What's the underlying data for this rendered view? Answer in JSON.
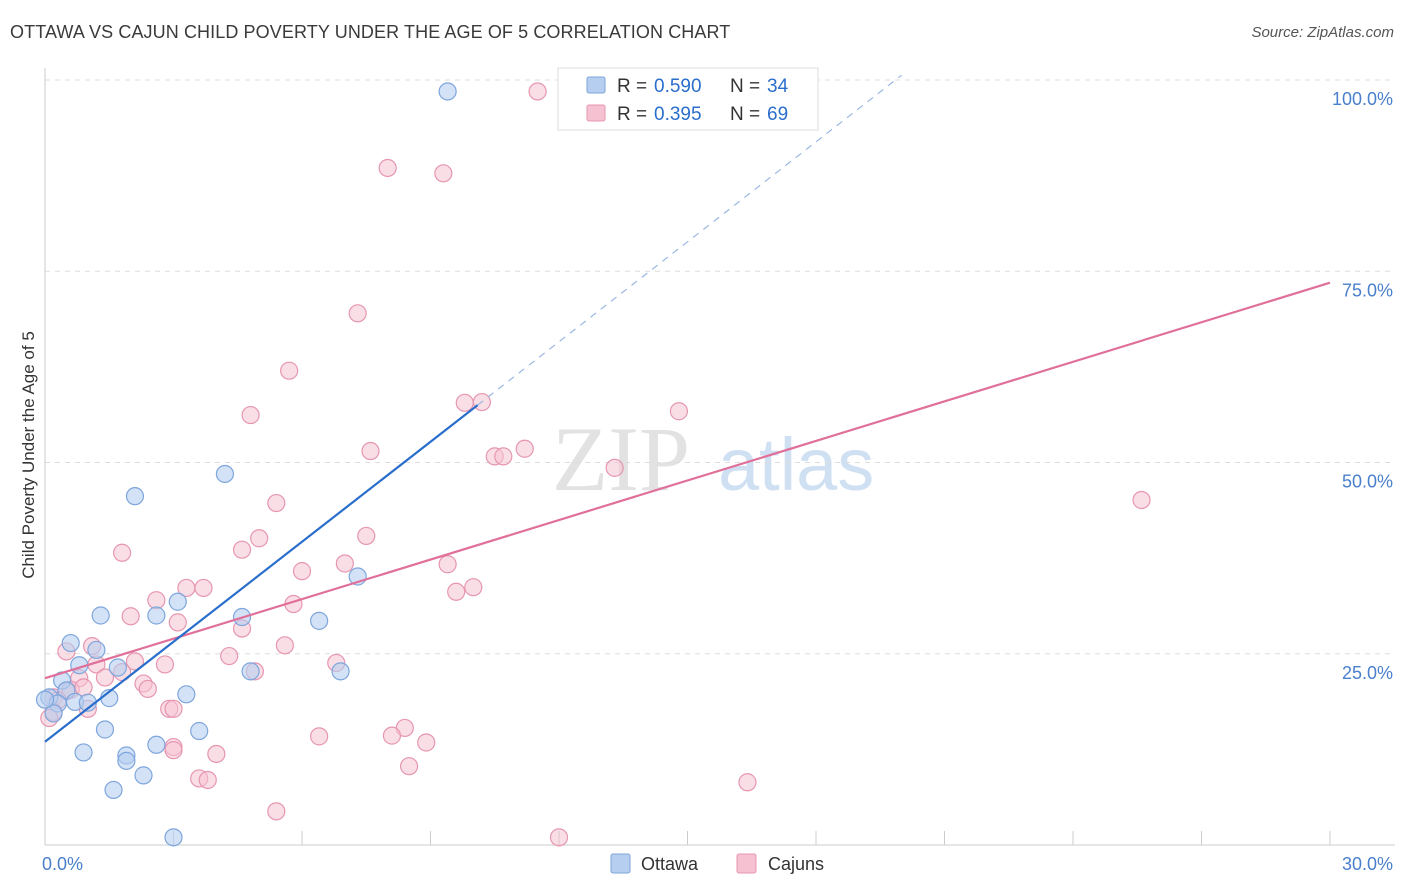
{
  "title": "OTTAWA VS CAJUN CHILD POVERTY UNDER THE AGE OF 5 CORRELATION CHART",
  "source": "Source: ZipAtlas.com",
  "watermark": {
    "zip": "ZIP",
    "atlas": "atlas"
  },
  "colors": {
    "ottawa_fill": "#b6cff0",
    "ottawa_stroke": "#7ea6dc",
    "ottawa_line": "#2a6ecb",
    "cajun_fill": "#f6c2d2",
    "cajun_stroke": "#e696b1",
    "cajun_line": "#e0709a",
    "tick_label": "#4a7fcc",
    "grid": "#dddddd"
  },
  "legend": {
    "rows": [
      {
        "r_label": "R =",
        "r_value": "0.590",
        "n_label": "N =",
        "n_value": "34"
      },
      {
        "r_label": "R =",
        "r_value": "0.395",
        "n_label": "N =",
        "n_value": "69"
      }
    ]
  },
  "bottom_legend": [
    "Ottawa",
    "Cajuns"
  ],
  "chart_data": {
    "type": "scatter",
    "title": "OTTAWA VS CAJUN CHILD POVERTY UNDER THE AGE OF 5 CORRELATION CHART",
    "xlabel": "",
    "ylabel": "Child Poverty Under the Age of 5",
    "xlim": [
      0,
      30
    ],
    "ylim": [
      0,
      100
    ],
    "x_tick_labels": [
      {
        "value": 0,
        "label": "0.0%"
      },
      {
        "value": 30,
        "label": "30.0%"
      }
    ],
    "y_tick_labels": [
      {
        "value": 25,
        "label": "25.0%"
      },
      {
        "value": 50,
        "label": "50.0%"
      },
      {
        "value": 75,
        "label": "75.0%"
      },
      {
        "value": 100,
        "label": "100.0%"
      }
    ],
    "series": [
      {
        "name": "Ottawa",
        "r": 0.59,
        "n": 34,
        "trend": {
          "x0": 0,
          "y0": 13.5,
          "x1": 10.1,
          "y1": 57.5,
          "dash_to_x": 20
        },
        "points": [
          [
            9.4,
            98.5
          ],
          [
            4.2,
            48.5
          ],
          [
            2.1,
            45.6
          ],
          [
            7.3,
            35.1
          ],
          [
            3.1,
            31.8
          ],
          [
            1.3,
            30.0
          ],
          [
            2.6,
            30.0
          ],
          [
            4.6,
            29.8
          ],
          [
            6.4,
            29.3
          ],
          [
            0.6,
            26.4
          ],
          [
            1.2,
            25.5
          ],
          [
            0.8,
            23.5
          ],
          [
            1.7,
            23.2
          ],
          [
            4.8,
            22.7
          ],
          [
            6.9,
            22.7
          ],
          [
            0.4,
            21.5
          ],
          [
            0.5,
            20.2
          ],
          [
            3.3,
            19.7
          ],
          [
            1.5,
            19.2
          ],
          [
            0.1,
            19.3
          ],
          [
            0.3,
            18.5
          ],
          [
            0.7,
            18.7
          ],
          [
            1.0,
            18.6
          ],
          [
            0.2,
            17.2
          ],
          [
            1.4,
            15.1
          ],
          [
            3.6,
            14.9
          ],
          [
            2.6,
            13.1
          ],
          [
            0.9,
            12.1
          ],
          [
            1.9,
            11.7
          ],
          [
            1.9,
            11.0
          ],
          [
            2.3,
            9.1
          ],
          [
            1.6,
            7.2
          ],
          [
            3.0,
            1.0
          ],
          [
            0.0,
            19.0
          ]
        ]
      },
      {
        "name": "Cajuns",
        "r": 0.395,
        "n": 69,
        "trend": {
          "x0": 0,
          "y0": 21.8,
          "x1": 30,
          "y1": 73.5
        },
        "points": [
          [
            11.5,
            98.5
          ],
          [
            8.0,
            88.5
          ],
          [
            9.3,
            87.8
          ],
          [
            7.3,
            69.5
          ],
          [
            5.7,
            62.0
          ],
          [
            10.2,
            57.9
          ],
          [
            9.8,
            57.8
          ],
          [
            14.8,
            56.7
          ],
          [
            4.8,
            56.2
          ],
          [
            11.2,
            51.8
          ],
          [
            10.5,
            50.8
          ],
          [
            10.7,
            50.8
          ],
          [
            7.6,
            51.5
          ],
          [
            13.3,
            49.3
          ],
          [
            25.6,
            45.1
          ],
          [
            5.4,
            44.7
          ],
          [
            7.5,
            40.4
          ],
          [
            5.0,
            40.1
          ],
          [
            4.6,
            38.6
          ],
          [
            1.8,
            38.2
          ],
          [
            7.0,
            36.8
          ],
          [
            9.4,
            36.7
          ],
          [
            6.0,
            35.8
          ],
          [
            10.0,
            33.7
          ],
          [
            3.3,
            33.6
          ],
          [
            3.7,
            33.6
          ],
          [
            9.6,
            33.1
          ],
          [
            2.6,
            32.0
          ],
          [
            5.8,
            31.5
          ],
          [
            2.0,
            29.9
          ],
          [
            3.1,
            29.1
          ],
          [
            4.6,
            28.3
          ],
          [
            5.6,
            26.1
          ],
          [
            1.1,
            26.0
          ],
          [
            0.5,
            25.3
          ],
          [
            4.3,
            24.7
          ],
          [
            2.1,
            24.0
          ],
          [
            6.8,
            23.8
          ],
          [
            2.8,
            23.6
          ],
          [
            1.2,
            23.6
          ],
          [
            4.9,
            22.7
          ],
          [
            1.8,
            22.6
          ],
          [
            1.4,
            21.9
          ],
          [
            0.8,
            21.8
          ],
          [
            2.3,
            21.1
          ],
          [
            2.4,
            20.4
          ],
          [
            0.5,
            20.1
          ],
          [
            0.6,
            20.3
          ],
          [
            0.9,
            20.6
          ],
          [
            0.2,
            19.3
          ],
          [
            0.3,
            18.9
          ],
          [
            2.9,
            17.8
          ],
          [
            3.0,
            17.8
          ],
          [
            1.0,
            17.8
          ],
          [
            0.2,
            17.4
          ],
          [
            0.1,
            16.6
          ],
          [
            8.4,
            15.3
          ],
          [
            6.4,
            14.2
          ],
          [
            8.1,
            14.3
          ],
          [
            8.9,
            13.4
          ],
          [
            3.0,
            12.8
          ],
          [
            4.0,
            11.9
          ],
          [
            3.0,
            12.4
          ],
          [
            8.5,
            10.3
          ],
          [
            3.6,
            8.7
          ],
          [
            16.4,
            8.2
          ],
          [
            3.8,
            8.5
          ],
          [
            5.4,
            4.4
          ],
          [
            12.0,
            1.0
          ]
        ]
      }
    ]
  }
}
